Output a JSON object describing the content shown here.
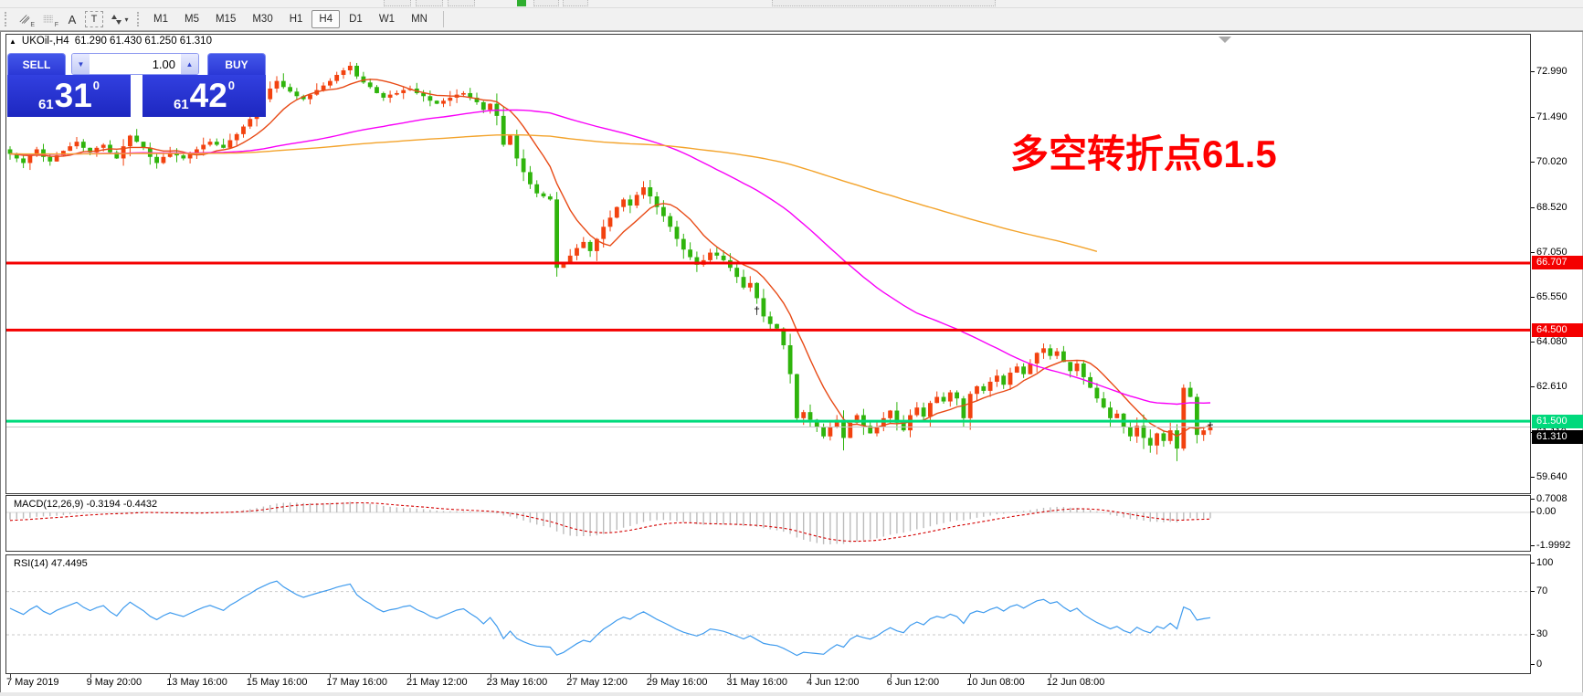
{
  "window": {
    "collapse_arrow": "▲",
    "title_symbol": "UKOil-,H4",
    "title_ohlc": "61.290 61.430 61.250 61.310"
  },
  "toolbar": {
    "icons": [
      {
        "name": "equidistant-channel-icon",
        "sub": "E"
      },
      {
        "name": "fibonacci-retracement-icon",
        "sub": "F"
      },
      {
        "name": "text-icon",
        "glyph": "A"
      },
      {
        "name": "text-label-icon",
        "glyph": "T"
      },
      {
        "name": "arrow-objects-icon",
        "caret": "▾"
      }
    ],
    "timeframes": [
      {
        "label": "M1",
        "active": false
      },
      {
        "label": "M5",
        "active": false
      },
      {
        "label": "M15",
        "active": false
      },
      {
        "label": "M30",
        "active": false
      },
      {
        "label": "H1",
        "active": false
      },
      {
        "label": "H4",
        "active": true
      },
      {
        "label": "D1",
        "active": false
      },
      {
        "label": "W1",
        "active": false
      },
      {
        "label": "MN",
        "active": false
      }
    ]
  },
  "trade": {
    "sell_label": "SELL",
    "buy_label": "BUY",
    "volume": "1.00",
    "vol_down_glyph": "▼",
    "vol_up_glyph": "▲",
    "bid_small": "61",
    "bid_big": "31",
    "bid_sup": "0",
    "ask_small": "61",
    "ask_big": "42",
    "ask_sup": "0"
  },
  "annotation": {
    "text": "多空转折点61.5",
    "color": "#ff0000"
  },
  "price_axis": {
    "labels": [
      "72.990",
      "71.490",
      "70.020",
      "68.520",
      "67.050",
      "65.550",
      "64.080",
      "62.610",
      "61.110",
      "59.640"
    ],
    "values": [
      72.99,
      71.49,
      70.02,
      68.52,
      67.05,
      65.55,
      64.08,
      62.61,
      61.11,
      59.64
    ]
  },
  "hlines": [
    {
      "value": 66.707,
      "label": "66.707",
      "color": "#f40000",
      "badge": "red",
      "width": 3
    },
    {
      "value": 64.5,
      "label": "64.500",
      "color": "#f40000",
      "badge": "red",
      "width": 3
    },
    {
      "value": 61.5,
      "label": "61.500",
      "color": "#00db7c",
      "badge": "green",
      "width": 3
    },
    {
      "value": 61.31,
      "label": "61.310",
      "color": "#c9c9c9",
      "badge": "black",
      "width": 1
    }
  ],
  "macd_panel": {
    "label": "MACD(12,26,9) -0.3194 -0.4432",
    "params": [
      12,
      26,
      9
    ],
    "values": [
      -0.3194,
      -0.4432
    ],
    "axis_labels": [
      "0.7008",
      "0.00",
      "-1.9992"
    ],
    "axis_values": [
      0.7008,
      0.0,
      -1.9992
    ]
  },
  "rsi_panel": {
    "label": "RSI(14) 47.4495",
    "period": 14,
    "value": 47.4495,
    "axis_labels": [
      "100",
      "70",
      "30",
      "0"
    ],
    "axis_values": [
      100,
      70,
      30,
      0
    ],
    "levels": [
      70,
      30
    ]
  },
  "date_axis": {
    "labels": [
      "7 May 2019",
      "9 May 20:00",
      "13 May 16:00",
      "15 May 16:00",
      "17 May 16:00",
      "21 May 12:00",
      "23 May 16:00",
      "27 May 12:00",
      "29 May 16:00",
      "31 May 16:00",
      "4 Jun 12:00",
      "6 Jun 12:00",
      "10 Jun 08:00",
      "12 Jun 08:00"
    ],
    "indices": [
      0,
      12,
      24,
      36,
      48,
      60,
      72,
      84,
      96,
      108,
      120,
      132,
      144,
      156
    ]
  },
  "markers": [
    {
      "index": 112,
      "price": 65.15,
      "glyph": "†"
    },
    {
      "index": 180,
      "price": 61.38,
      "glyph": "+"
    }
  ],
  "chart_data": {
    "type": "candlestick",
    "title": "UKOil-,H4",
    "symbol": "UKOil-",
    "timeframe": "H4",
    "current_ohlc": {
      "open": 61.29,
      "high": 61.43,
      "low": 61.25,
      "close": 61.31
    },
    "bid": 61.31,
    "ask": 61.42,
    "ylim": [
      59.1,
      74.2
    ],
    "grid": false,
    "closes": [
      70.3,
      70.15,
      70.0,
      70.25,
      70.45,
      70.2,
      70.05,
      70.25,
      70.4,
      70.55,
      70.7,
      70.5,
      70.35,
      70.5,
      70.6,
      70.35,
      70.15,
      70.55,
      70.9,
      70.7,
      70.5,
      70.2,
      70.0,
      70.2,
      70.35,
      70.25,
      70.15,
      70.3,
      70.45,
      70.6,
      70.7,
      70.6,
      70.5,
      70.75,
      70.95,
      71.2,
      71.45,
      71.8,
      72.1,
      72.45,
      72.7,
      72.5,
      72.35,
      72.2,
      72.1,
      72.25,
      72.4,
      72.55,
      72.7,
      72.9,
      73.05,
      73.2,
      72.85,
      72.65,
      72.5,
      72.3,
      72.15,
      72.25,
      72.3,
      72.4,
      72.45,
      72.3,
      72.2,
      72.05,
      71.95,
      72.05,
      72.15,
      72.25,
      72.3,
      72.15,
      72.0,
      71.75,
      71.95,
      71.55,
      70.6,
      70.9,
      70.15,
      69.7,
      69.3,
      69.0,
      68.9,
      68.8,
      66.55,
      66.7,
      66.95,
      67.2,
      67.4,
      67.1,
      67.5,
      67.9,
      68.2,
      68.55,
      68.8,
      68.6,
      68.95,
      69.2,
      68.9,
      68.55,
      68.25,
      67.9,
      67.5,
      67.15,
      66.9,
      66.65,
      66.8,
      67.05,
      66.95,
      66.8,
      66.55,
      66.25,
      65.9,
      66.05,
      65.55,
      64.95,
      64.7,
      64.55,
      64.0,
      63.05,
      61.6,
      61.8,
      61.55,
      61.3,
      61.0,
      61.3,
      61.55,
      60.95,
      61.45,
      61.7,
      61.35,
      61.1,
      61.3,
      61.6,
      61.85,
      61.45,
      61.2,
      61.7,
      61.95,
      61.65,
      62.1,
      62.3,
      62.15,
      62.45,
      62.25,
      61.6,
      62.4,
      62.65,
      62.5,
      62.8,
      63.0,
      62.7,
      63.1,
      63.3,
      63.05,
      63.4,
      63.75,
      63.9,
      63.65,
      63.8,
      63.45,
      63.15,
      63.4,
      62.95,
      62.6,
      62.25,
      61.95,
      61.6,
      61.75,
      61.3,
      61.0,
      61.35,
      60.95,
      60.7,
      61.1,
      60.85,
      61.2,
      60.6,
      62.6,
      62.3,
      61.05,
      61.2,
      61.31
    ],
    "open_rule": "previous_close",
    "moving_averages": [
      {
        "name": "MA fast",
        "period": 9,
        "color_key": "ma_fast",
        "end_index": 180
      },
      {
        "name": "MA mid",
        "period": 55,
        "color_key": "ma_mid",
        "end_index": 180
      },
      {
        "name": "MA slow",
        "period": 130,
        "color_key": "ma_slow",
        "end_index": 163
      }
    ],
    "colors": {
      "bull": "#f2420f",
      "bear": "#2fb40c",
      "ma_fast": "#e84b17",
      "ma_mid": "#f800f8",
      "ma_slow": "#f3a32b",
      "macd_hist": "#bcbcbc",
      "macd_signal": "#d40000",
      "rsi": "#3f9bee",
      "levels_dash": "#c9c9c9"
    }
  }
}
